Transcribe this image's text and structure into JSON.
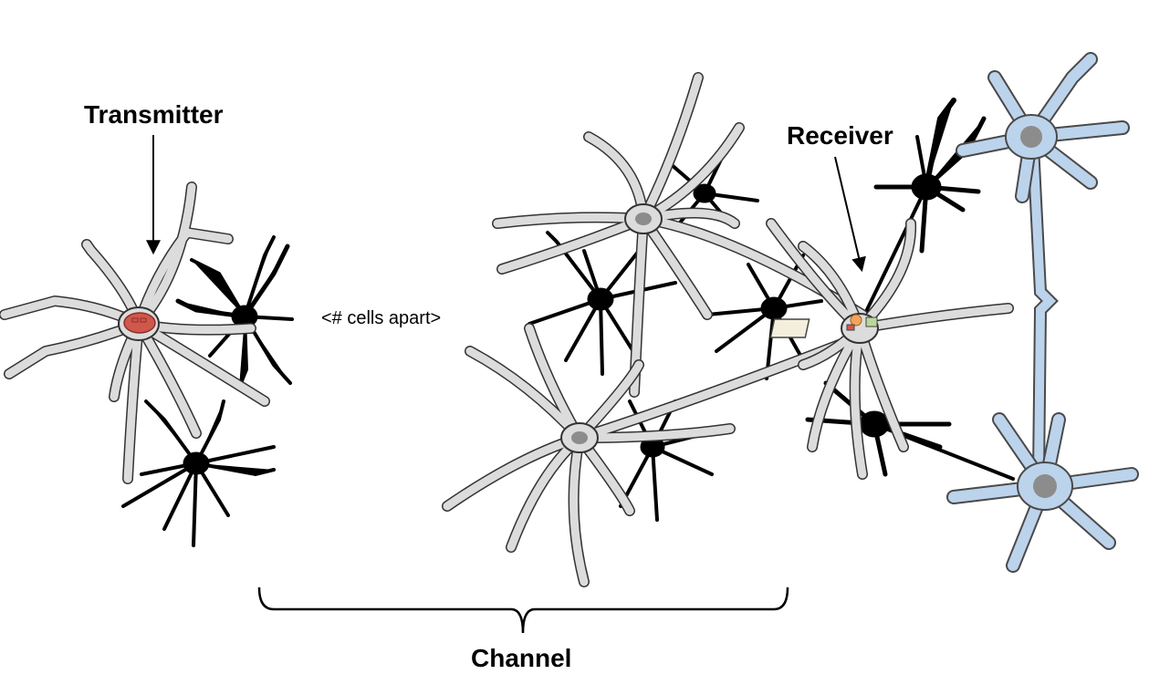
{
  "labels": {
    "transmitter": "Transmitter",
    "receiver": "Receiver",
    "distance": "<# cells apart>",
    "channel": "Channel"
  },
  "colors": {
    "astrocyte_fill": "#dcdcdc",
    "astrocyte_stroke": "#333333",
    "dark_cell": "#000000",
    "neuron_fill": "#bcd3ec",
    "neuron_stroke": "#4a4a4a",
    "nucleus": "#8c8c8c",
    "transmitter_marker": "#d0574c",
    "receiver_marker": "#f2a45a"
  },
  "icons": [
    "transmitter-device-icon",
    "receiver-device-icon"
  ]
}
